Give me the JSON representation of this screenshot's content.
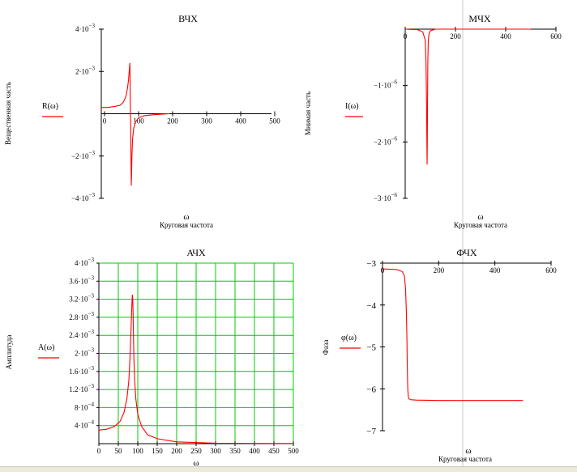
{
  "chart_data": [
    {
      "id": "vchx",
      "type": "line",
      "title": "ВЧХ",
      "xlabel": "ω",
      "xlabel_sub": "Круговая частота",
      "ylabel": "Вещественная часть",
      "legend_label": "R(ω)",
      "xlim": [
        0,
        500
      ],
      "ylim": [
        -0.004,
        0.004
      ],
      "grid": false,
      "color": "#ff0000",
      "x_ticks": [
        "0",
        "100",
        "200",
        "300",
        "400",
        "500"
      ],
      "y_ticks": [
        {
          "m": "4·10",
          "e": "−3"
        },
        {
          "m": "2·10",
          "e": "−3"
        },
        {
          "m": "−2·10",
          "e": "−3"
        },
        {
          "m": "−4·10",
          "e": "−3"
        }
      ],
      "series": [
        {
          "x": [
            0,
            20,
            40,
            55,
            65,
            72,
            77,
            80,
            82,
            84,
            85,
            86,
            87,
            88,
            89,
            90,
            92,
            95,
            100,
            110,
            125,
            150,
            200
          ],
          "y": [
            0.0003,
            0.0003,
            0.00035,
            0.0004,
            0.00055,
            0.0008,
            0.0012,
            0.0016,
            0.002,
            0.0024,
            0.0006,
            -0.0002,
            -0.0015,
            -0.0034,
            -0.0028,
            -0.002,
            -0.0012,
            -0.0007,
            -0.0004,
            -0.00018,
            -0.0001,
            -5e-05,
            0
          ]
        }
      ]
    },
    {
      "id": "mchx",
      "type": "line",
      "title": "МЧХ",
      "xlabel": "ω",
      "xlabel_sub": "Круговая частота",
      "ylabel": "Мнимая часть",
      "legend_label": "I(ω)",
      "xlim": [
        0,
        600
      ],
      "ylim": [
        -3e-06,
        0
      ],
      "grid": false,
      "color": "#ff0000",
      "x_ticks": [
        "0",
        "200",
        "400",
        "600"
      ],
      "y_ticks": [
        {
          "m": "−1·10",
          "e": "−6"
        },
        {
          "m": "−2·10",
          "e": "−6"
        },
        {
          "m": "−3·10",
          "e": "−6"
        }
      ],
      "series": [
        {
          "x": [
            0,
            50,
            70,
            80,
            83,
            85,
            86,
            87,
            88,
            89,
            90,
            92,
            95,
            100,
            120,
            200,
            300,
            400,
            500
          ],
          "y": [
            0,
            -1e-08,
            -5e-08,
            -2e-07,
            -6e-07,
            -1.4e-06,
            -1.9e-06,
            -2.4e-06,
            -2e-06,
            -1.2e-06,
            -6e-07,
            -2e-07,
            -8e-08,
            -3e-08,
            0,
            0,
            0,
            0,
            0
          ]
        }
      ]
    },
    {
      "id": "achx",
      "type": "line",
      "title": "АЧХ",
      "xlabel": "ω",
      "ylabel": "Амплитуда",
      "legend_label": "A(ω)",
      "xlim": [
        0,
        500
      ],
      "ylim": [
        0,
        0.004
      ],
      "grid": true,
      "grid_color": "#00cc00",
      "color": "#ff0000",
      "x_ticks": [
        "0",
        "50",
        "100",
        "150",
        "200",
        "250",
        "300",
        "350",
        "400",
        "450",
        "500"
      ],
      "y_ticks": [
        {
          "m": "4·10",
          "e": "−3"
        },
        {
          "m": "3.6·10",
          "e": "−3"
        },
        {
          "m": "3.2·10",
          "e": "−3"
        },
        {
          "m": "2.8·10",
          "e": "−3"
        },
        {
          "m": "2.4·10",
          "e": "−3"
        },
        {
          "m": "2·10",
          "e": "−3"
        },
        {
          "m": "1.6·10",
          "e": "−3"
        },
        {
          "m": "1.2·10",
          "e": "−3"
        },
        {
          "m": "8·10",
          "e": "−4"
        },
        {
          "m": "4·10",
          "e": "−4"
        }
      ],
      "series": [
        {
          "x": [
            0,
            20,
            40,
            55,
            65,
            72,
            77,
            80,
            83,
            85,
            86,
            87,
            88,
            89,
            90,
            92,
            95,
            100,
            110,
            125,
            150,
            200,
            300,
            400,
            500
          ],
          "y": [
            0.0003,
            0.00032,
            0.00038,
            0.0005,
            0.0007,
            0.001,
            0.0014,
            0.0019,
            0.0026,
            0.0031,
            0.0033,
            0.0032,
            0.0029,
            0.0024,
            0.0019,
            0.0014,
            0.001,
            0.00065,
            0.00038,
            0.0002,
            0.00011,
            4e-05,
            1e-05,
            5e-06,
            3e-06
          ]
        }
      ]
    },
    {
      "id": "fchx",
      "type": "line",
      "title": "ФЧХ",
      "xlabel": "ω",
      "xlabel_sub": "Круговая частота",
      "ylabel": "Фаза",
      "legend_label": "φ(ω)",
      "xlim": [
        0,
        600
      ],
      "ylim": [
        -7,
        -3
      ],
      "grid": false,
      "color": "#ff0000",
      "x_ticks": [
        "0",
        "200",
        "400",
        "600"
      ],
      "y_ticks": [
        "−3",
        "−4",
        "−5",
        "−6",
        "−7"
      ],
      "series": [
        {
          "x": [
            0,
            50,
            70,
            78,
            82,
            85,
            87,
            88,
            89,
            90,
            92,
            95,
            100,
            120,
            200,
            300,
            400,
            500
          ],
          "y": [
            -3.14,
            -3.15,
            -3.2,
            -3.3,
            -3.6,
            -4.2,
            -4.9,
            -5.4,
            -5.8,
            -6.0,
            -6.2,
            -6.24,
            -6.26,
            -6.27,
            -6.28,
            -6.28,
            -6.28,
            -6.28
          ]
        }
      ]
    }
  ]
}
